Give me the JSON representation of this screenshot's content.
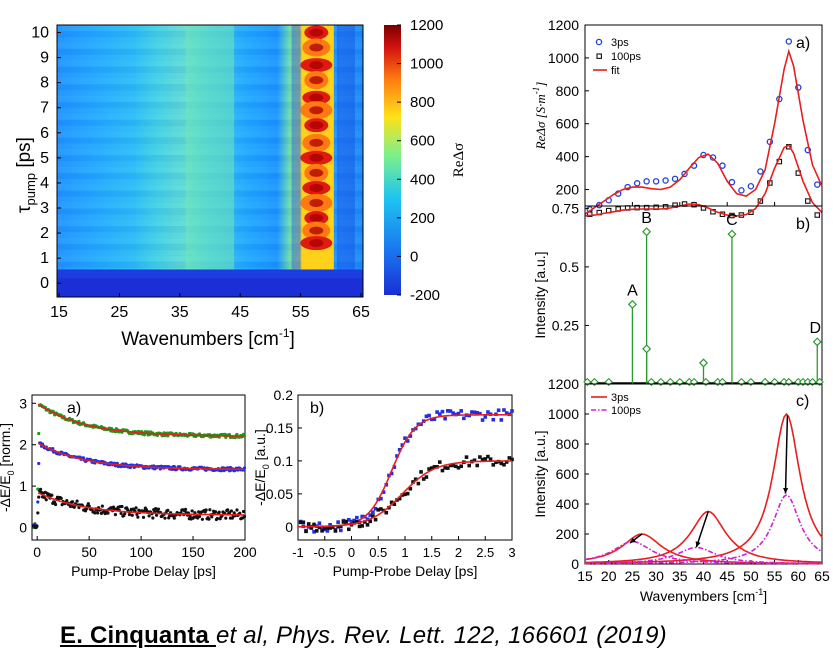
{
  "citation": {
    "author": "E. Cinquanta ",
    "rest": "et al, Phys. Rev. Lett. 122, 166601 (2019)"
  },
  "colormap_panel": {
    "ylabel_main": "τ",
    "ylabel_sub": "pump",
    "ylabel_unit": " [ps]",
    "xlabel": "Wavenumbers [cm",
    "xlabel_sup": "-1",
    "xlabel_close": "]",
    "xticks": [
      "15",
      "25",
      "35",
      "45",
      "55",
      "65"
    ],
    "yticks": [
      "0",
      "1",
      "2",
      "3",
      "4",
      "5",
      "6",
      "7",
      "8",
      "9",
      "10"
    ],
    "colorbar_label": "ReΔσ",
    "colorbar_ticks": [
      "1200",
      "1000",
      "800",
      "600",
      "400",
      "200",
      "0",
      "-200"
    ],
    "colors": {
      "deep_blue": "#1a2fd6",
      "cyan": "#1fb8ff",
      "yellow": "#ffd11a",
      "red": "#d01010",
      "dark_red": "#7a0000"
    }
  },
  "chart_data": [
    {
      "id": "top-right-a",
      "type": "line",
      "panel_label": "a)",
      "ylabel": "ReΔσ [S·m⁻¹]",
      "ylabel_parts": {
        "main": "ReΔσ [S·m",
        "sup": "-1",
        "close": "]"
      },
      "xlim": [
        15,
        65
      ],
      "ylim": [
        100,
        1200
      ],
      "yticks": [
        "200",
        "400",
        "600",
        "800",
        "1000",
        "1200"
      ],
      "legend": [
        "3ps",
        "100ps",
        "fit"
      ],
      "series": [
        {
          "name": "3ps",
          "style": "circles",
          "color": "#1f3fd8",
          "x": [
            16,
            18,
            20,
            22,
            24,
            26,
            28,
            30,
            32,
            34,
            36,
            38,
            40,
            42,
            44,
            46,
            48,
            50,
            52,
            54,
            56,
            58,
            60,
            62,
            64
          ],
          "y": [
            80,
            105,
            135,
            175,
            215,
            238,
            250,
            250,
            255,
            265,
            295,
            345,
            410,
            395,
            345,
            245,
            195,
            220,
            310,
            490,
            750,
            1100,
            820,
            440,
            230
          ]
        },
        {
          "name": "100ps",
          "style": "squares",
          "color": "#111111",
          "x": [
            16,
            18,
            20,
            22,
            24,
            26,
            28,
            30,
            32,
            34,
            36,
            38,
            40,
            42,
            44,
            46,
            48,
            50,
            52,
            54,
            56,
            58,
            60,
            62,
            64
          ],
          "y": [
            50,
            60,
            72,
            82,
            88,
            90,
            90,
            92,
            95,
            105,
            112,
            108,
            88,
            65,
            50,
            42,
            45,
            62,
            130,
            240,
            370,
            460,
            300,
            130,
            45
          ]
        },
        {
          "name": "fit 3ps",
          "style": "line",
          "color": "#e81e1e",
          "x": [
            15,
            17,
            19,
            21,
            23,
            25,
            27,
            29,
            31,
            33,
            35,
            37,
            39,
            41,
            43,
            45,
            47,
            49,
            51,
            53,
            55,
            57,
            58,
            59,
            61,
            63,
            65
          ],
          "y": [
            50,
            90,
            130,
            170,
            200,
            215,
            215,
            205,
            200,
            215,
            260,
            330,
            395,
            415,
            360,
            250,
            175,
            160,
            200,
            320,
            600,
            930,
            1040,
            950,
            620,
            350,
            220
          ]
        },
        {
          "name": "fit 100ps",
          "style": "line",
          "color": "#e81e1e",
          "x": [
            15,
            17,
            19,
            21,
            23,
            25,
            27,
            29,
            31,
            33,
            35,
            37,
            39,
            41,
            43,
            45,
            47,
            49,
            51,
            53,
            55,
            57,
            58,
            59,
            61,
            63,
            65
          ],
          "y": [
            30,
            45,
            55,
            65,
            75,
            80,
            82,
            82,
            82,
            88,
            100,
            112,
            108,
            88,
            62,
            45,
            40,
            48,
            85,
            175,
            330,
            455,
            470,
            420,
            250,
            120,
            60
          ]
        }
      ]
    },
    {
      "id": "top-right-b",
      "type": "stem",
      "panel_label": "b)",
      "ylabel": "Intensity [a.u.]",
      "ylim": [
        0,
        0.75
      ],
      "yticks": [
        "0.25",
        "0.5",
        "0.75"
      ],
      "annotations": [
        "A",
        "B",
        "C",
        "D"
      ],
      "stems": [
        {
          "x": 25,
          "y": 0.34,
          "label": "A"
        },
        {
          "x": 28,
          "y": 0.65,
          "label": "B"
        },
        {
          "x": 28,
          "y": 0.15,
          "label": ""
        },
        {
          "x": 46,
          "y": 0.64,
          "label": "C"
        },
        {
          "x": 40,
          "y": 0.09,
          "label": ""
        },
        {
          "x": 64,
          "y": 0.18,
          "label": "D"
        }
      ],
      "small_markers_x": [
        15.5,
        17,
        20,
        29,
        31,
        33,
        35,
        37,
        38,
        40.5,
        43,
        44,
        48,
        50,
        53,
        55,
        57,
        58,
        60,
        61,
        62,
        63,
        64.5
      ]
    },
    {
      "id": "top-right-c",
      "type": "line",
      "panel_label": "c)",
      "ylabel": "Intensity [a.u.]",
      "xlabel": "Wavenymbers [cm⁻¹]",
      "xlabel_parts": {
        "main": "Wavenymbers [cm",
        "sup": "-1",
        "close": "]"
      },
      "xlim": [
        15,
        65
      ],
      "ylim": [
        0,
        1200
      ],
      "xticks": [
        "15",
        "20",
        "25",
        "30",
        "35",
        "40",
        "45",
        "50",
        "55",
        "60",
        "65"
      ],
      "yticks": [
        "0",
        "200",
        "400",
        "600",
        "800",
        "1000",
        "1200"
      ],
      "legend": [
        "3ps",
        "100ps"
      ],
      "series": [
        {
          "name": "3ps peak 1",
          "center": 27,
          "height": 200,
          "width": 5,
          "color": "#e81e1e"
        },
        {
          "name": "3ps peak 2",
          "center": 41,
          "height": 350,
          "width": 4.5,
          "color": "#e81e1e"
        },
        {
          "name": "3ps peak 3",
          "center": 57.5,
          "height": 1000,
          "width": 3.5,
          "color": "#e81e1e"
        },
        {
          "name": "100ps peak 1",
          "center": 25,
          "height": 150,
          "width": 5,
          "color": "#d020d0"
        },
        {
          "name": "100ps peak 2",
          "center": 38.5,
          "height": 110,
          "width": 5,
          "color": "#d020d0"
        },
        {
          "name": "100ps peak 3",
          "center": 57.5,
          "height": 460,
          "width": 3.5,
          "color": "#d020d0"
        }
      ]
    },
    {
      "id": "bottom-left-a",
      "type": "scatter",
      "panel_label": "a)",
      "ylabel": "-ΔE/E₀ [norm.]",
      "ylabel_parts": {
        "main": "-ΔE/E",
        "sub": "0",
        "close": " [norm.]"
      },
      "xlabel": "Pump-Probe Delay [ps]",
      "xlim": [
        -5,
        200
      ],
      "ylim": [
        -0.3,
        3.2
      ],
      "xticks": [
        "0",
        "50",
        "100",
        "150",
        "200"
      ],
      "yticks": [
        "0",
        "1",
        "2",
        "3"
      ],
      "series": [
        {
          "name": "green",
          "color": "#1a9a1a",
          "offset": 2.0,
          "start": 3.0,
          "end": 2.2
        },
        {
          "name": "blue",
          "color": "#2030e0",
          "offset": 1.0,
          "start": 2.05,
          "end": 1.4
        },
        {
          "name": "black",
          "color": "#111111",
          "offset": 0.0,
          "start": 0.85,
          "end": 0.3
        }
      ]
    },
    {
      "id": "bottom-middle-b",
      "type": "scatter",
      "panel_label": "b)",
      "ylabel": "-ΔE/E₀ [a.u.]",
      "ylabel_parts": {
        "main": "-ΔE/E",
        "sub": "0",
        "close": " [a.u.]"
      },
      "xlabel": "Pump-Probe Delay [ps]",
      "xlim": [
        -1,
        3
      ],
      "ylim": [
        -0.02,
        0.2
      ],
      "xticks": [
        "-1",
        "-0.5",
        "0",
        "0.5",
        "1",
        "1.5",
        "2",
        "2.5",
        "3"
      ],
      "yticks": [
        "0",
        "0.05",
        "0.1",
        "0.15",
        "0.2"
      ],
      "series": [
        {
          "name": "blue",
          "color": "#2030e0",
          "plateau": 0.17,
          "rise_center": 0.75,
          "rise_width": 0.22
        },
        {
          "name": "black",
          "color": "#111111",
          "plateau": 0.1,
          "rise_center": 0.95,
          "rise_width": 0.3
        }
      ]
    }
  ]
}
